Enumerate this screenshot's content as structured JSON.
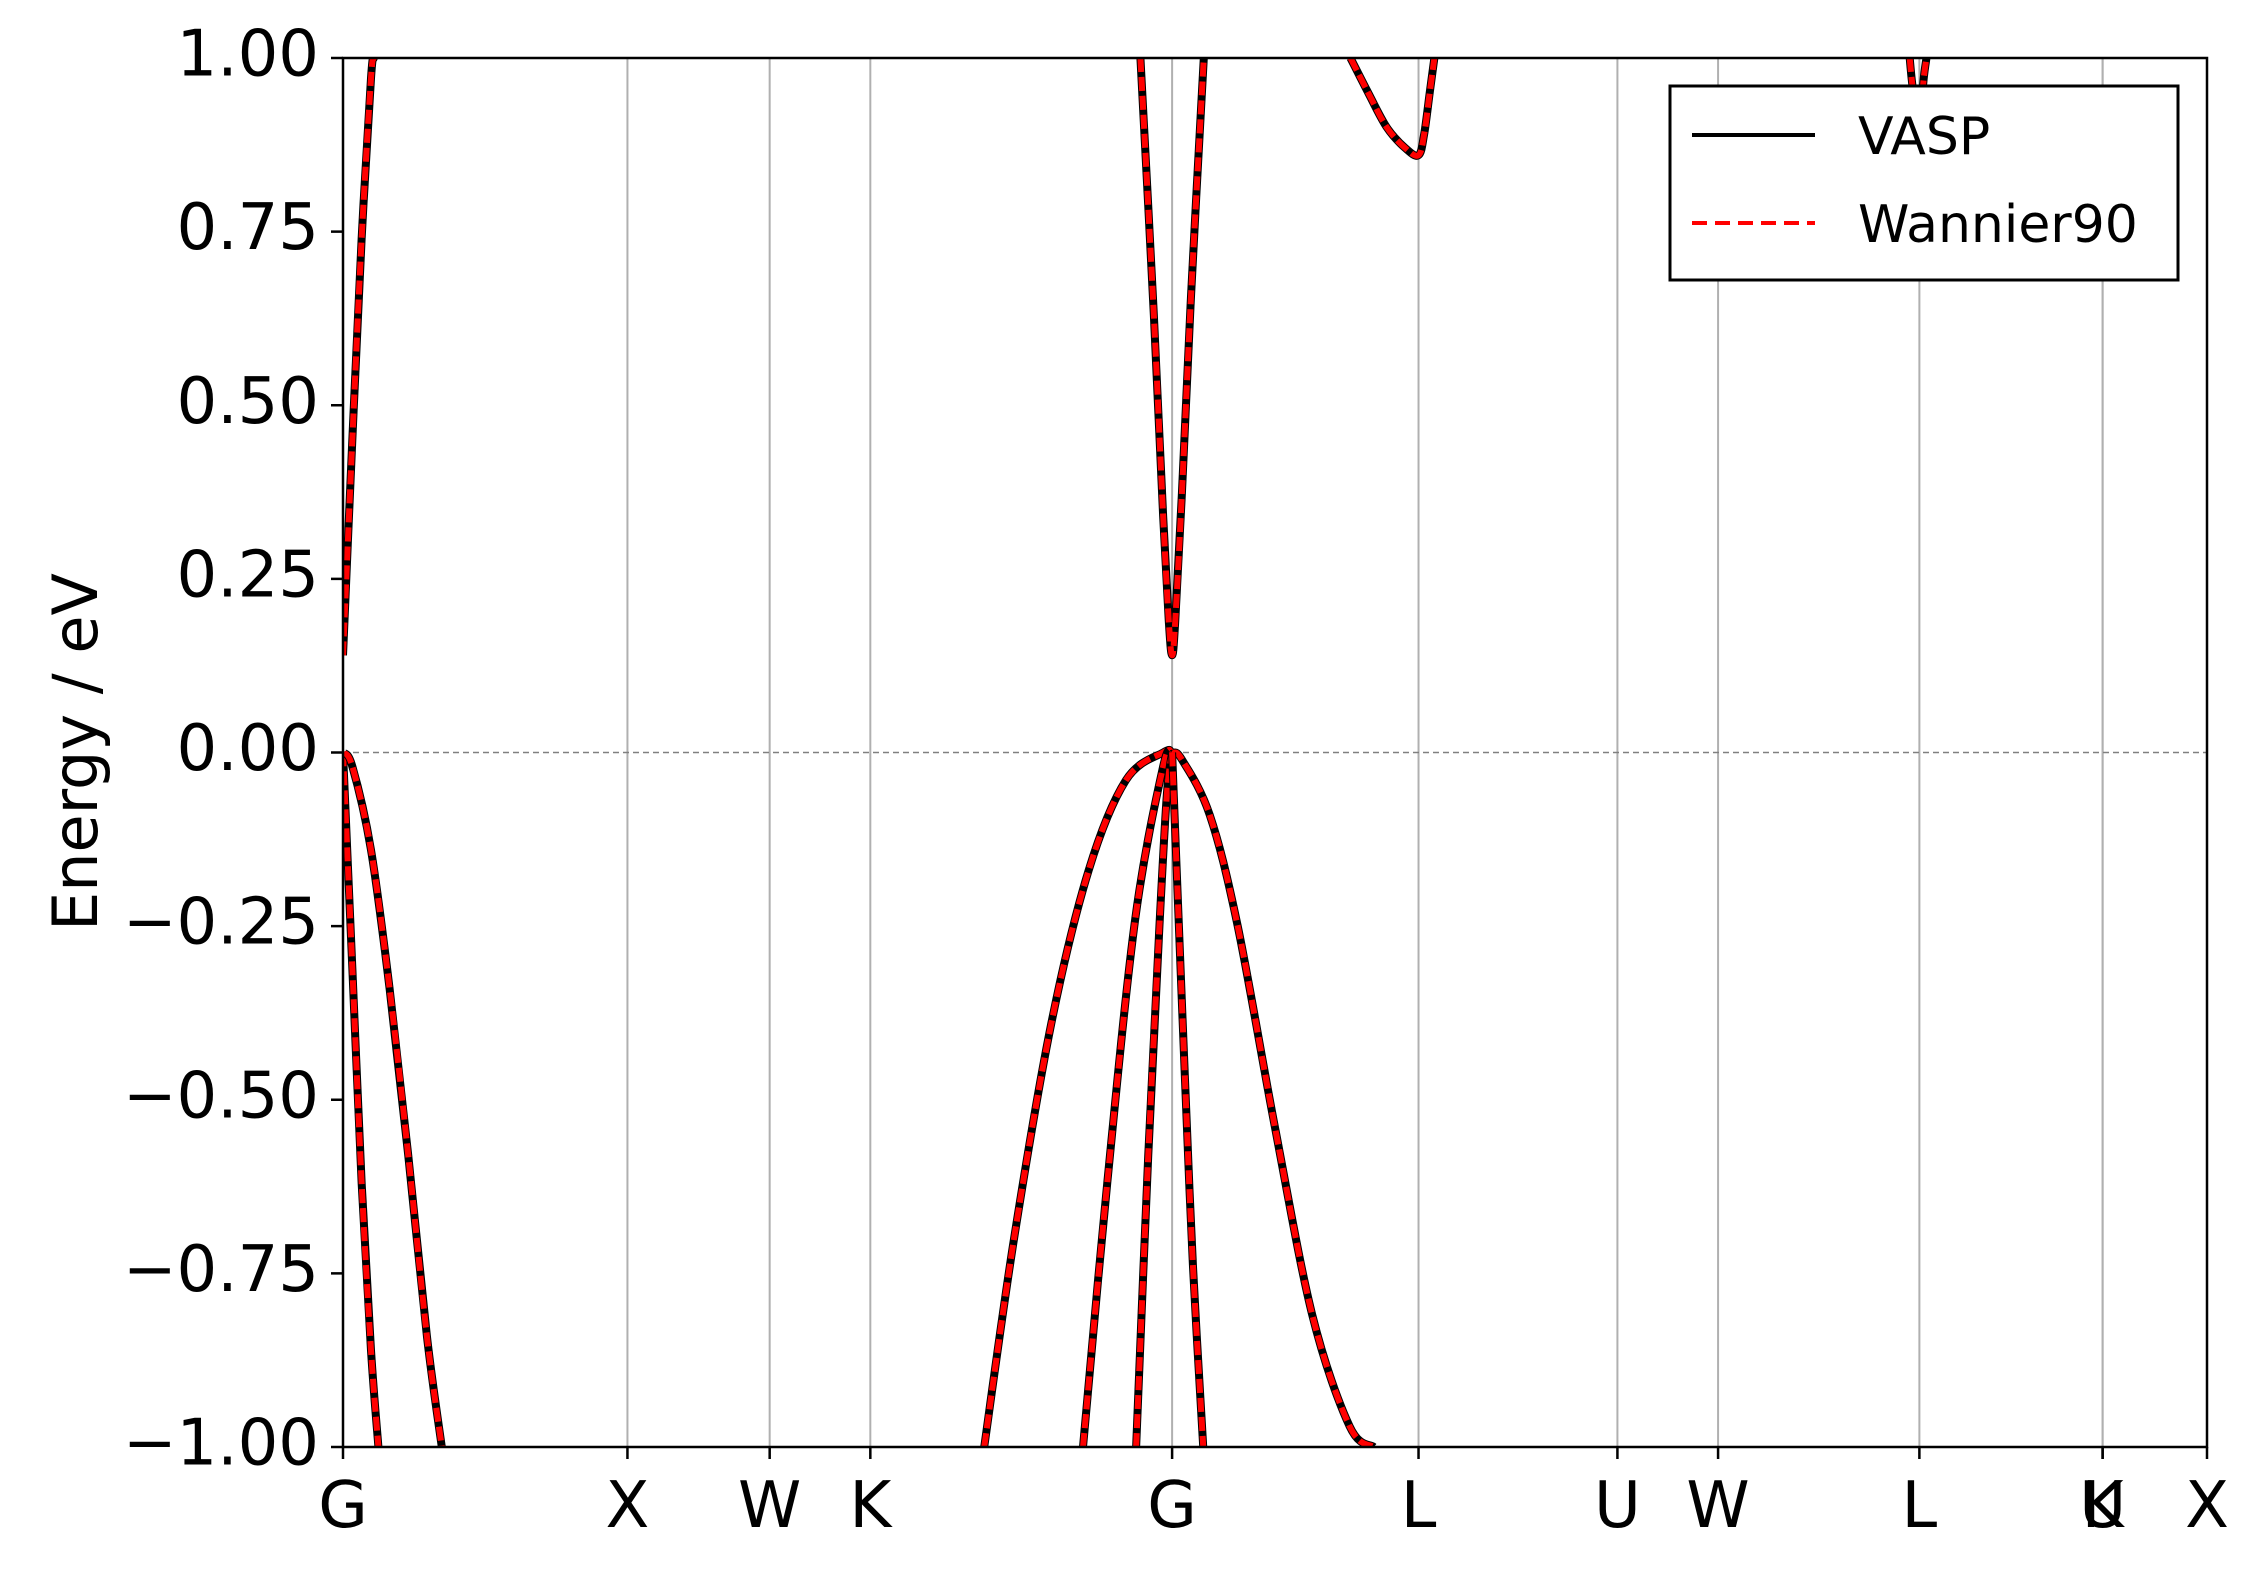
{
  "chart_data": {
    "type": "line",
    "title": "",
    "xlabel": "",
    "ylabel": "Energy / eV",
    "ylim": [
      -1.0,
      1.0
    ],
    "yticks": [
      "1.00",
      "0.75",
      "0.50",
      "0.25",
      "0.00",
      "−0.25",
      "−0.50",
      "−0.75",
      "−1.00"
    ],
    "ytick_values": [
      1.0,
      0.75,
      0.5,
      0.25,
      0.0,
      -0.25,
      -0.5,
      -0.75,
      -1.0
    ],
    "xlim": [
      0.0,
      1.0
    ],
    "kpoints": [
      {
        "label": "G",
        "x": 0.0
      },
      {
        "label": "X",
        "x": 0.1526
      },
      {
        "label": "W",
        "x": 0.2289
      },
      {
        "label": "K",
        "x": 0.2829
      },
      {
        "label": "G",
        "x": 0.4448
      },
      {
        "label": "L",
        "x": 0.577
      },
      {
        "label": "U",
        "x": 0.6837
      },
      {
        "label": "W",
        "x": 0.7377
      },
      {
        "label": "L",
        "x": 0.8457
      },
      {
        "label": "U",
        "x": 0.944
      },
      {
        "label": "K",
        "x": 0.944
      },
      {
        "label": "X",
        "x": 1.0
      }
    ],
    "fermi_level": 0.0,
    "grid": "vertical at k-points",
    "legend": {
      "placement": "upper right",
      "entries": [
        "VASP",
        "Wannier90"
      ]
    },
    "series": [
      {
        "name": "VASP",
        "color": "#000000",
        "style": "solid"
      },
      {
        "name": "Wannier90",
        "color": "#ff0000",
        "style": "dashed"
      }
    ],
    "bands": [
      {
        "x": [
          0.0,
          0.005,
          0.01,
          0.015,
          0.0165
        ],
        "y": [
          0.14,
          0.45,
          0.74,
          0.97,
          1.0
        ]
      },
      {
        "x": [
          0.0,
          0.005,
          0.01,
          0.015,
          0.019
        ],
        "y": [
          0.0,
          -0.31,
          -0.62,
          -0.86,
          -1.0
        ]
      },
      {
        "x": [
          0.0,
          0.005,
          0.015,
          0.025,
          0.035,
          0.045,
          0.053
        ],
        "y": [
          0.0,
          -0.02,
          -0.14,
          -0.34,
          -0.58,
          -0.84,
          -1.0
        ]
      },
      {
        "x": [
          0.344,
          0.36,
          0.38,
          0.4,
          0.42,
          0.44,
          0.4448,
          0.45,
          0.465,
          0.48,
          0.5,
          0.52,
          0.54,
          0.553
        ],
        "y": [
          -1.0,
          -0.7,
          -0.39,
          -0.17,
          -0.04,
          0.0,
          0.0,
          -0.01,
          -0.09,
          -0.25,
          -0.54,
          -0.81,
          -0.97,
          -1.0
        ]
      },
      {
        "x": [
          0.397,
          0.41,
          0.425,
          0.44,
          0.4448
        ],
        "y": [
          -1.0,
          -0.62,
          -0.24,
          -0.02,
          0.0
        ]
      },
      {
        "x": [
          0.4255,
          0.432,
          0.438,
          0.442,
          0.4448
        ],
        "y": [
          -1.0,
          -0.58,
          -0.25,
          -0.06,
          0.0
        ]
      },
      {
        "x": [
          0.4448,
          0.448,
          0.452,
          0.456,
          0.4615
        ],
        "y": [
          0.0,
          -0.22,
          -0.49,
          -0.74,
          -1.0
        ]
      },
      {
        "x": [
          0.4278,
          0.435,
          0.44,
          0.443,
          0.4448,
          0.4465,
          0.45,
          0.455,
          0.4618
        ],
        "y": [
          1.0,
          0.63,
          0.34,
          0.19,
          0.14,
          0.19,
          0.37,
          0.66,
          1.0
        ]
      },
      {
        "x": [
          0.5405,
          0.55,
          0.56,
          0.57,
          0.577,
          0.58,
          0.583,
          0.5855
        ],
        "y": [
          1.0,
          0.95,
          0.9,
          0.87,
          0.86,
          0.89,
          0.95,
          1.0
        ]
      },
      {
        "x": [
          0.8405,
          0.842,
          0.8445
        ],
        "y": [
          1.0,
          0.96,
          0.92
        ]
      },
      {
        "x": [
          0.8465,
          0.848,
          0.8495
        ],
        "y": [
          0.92,
          0.97,
          1.0
        ]
      }
    ]
  }
}
